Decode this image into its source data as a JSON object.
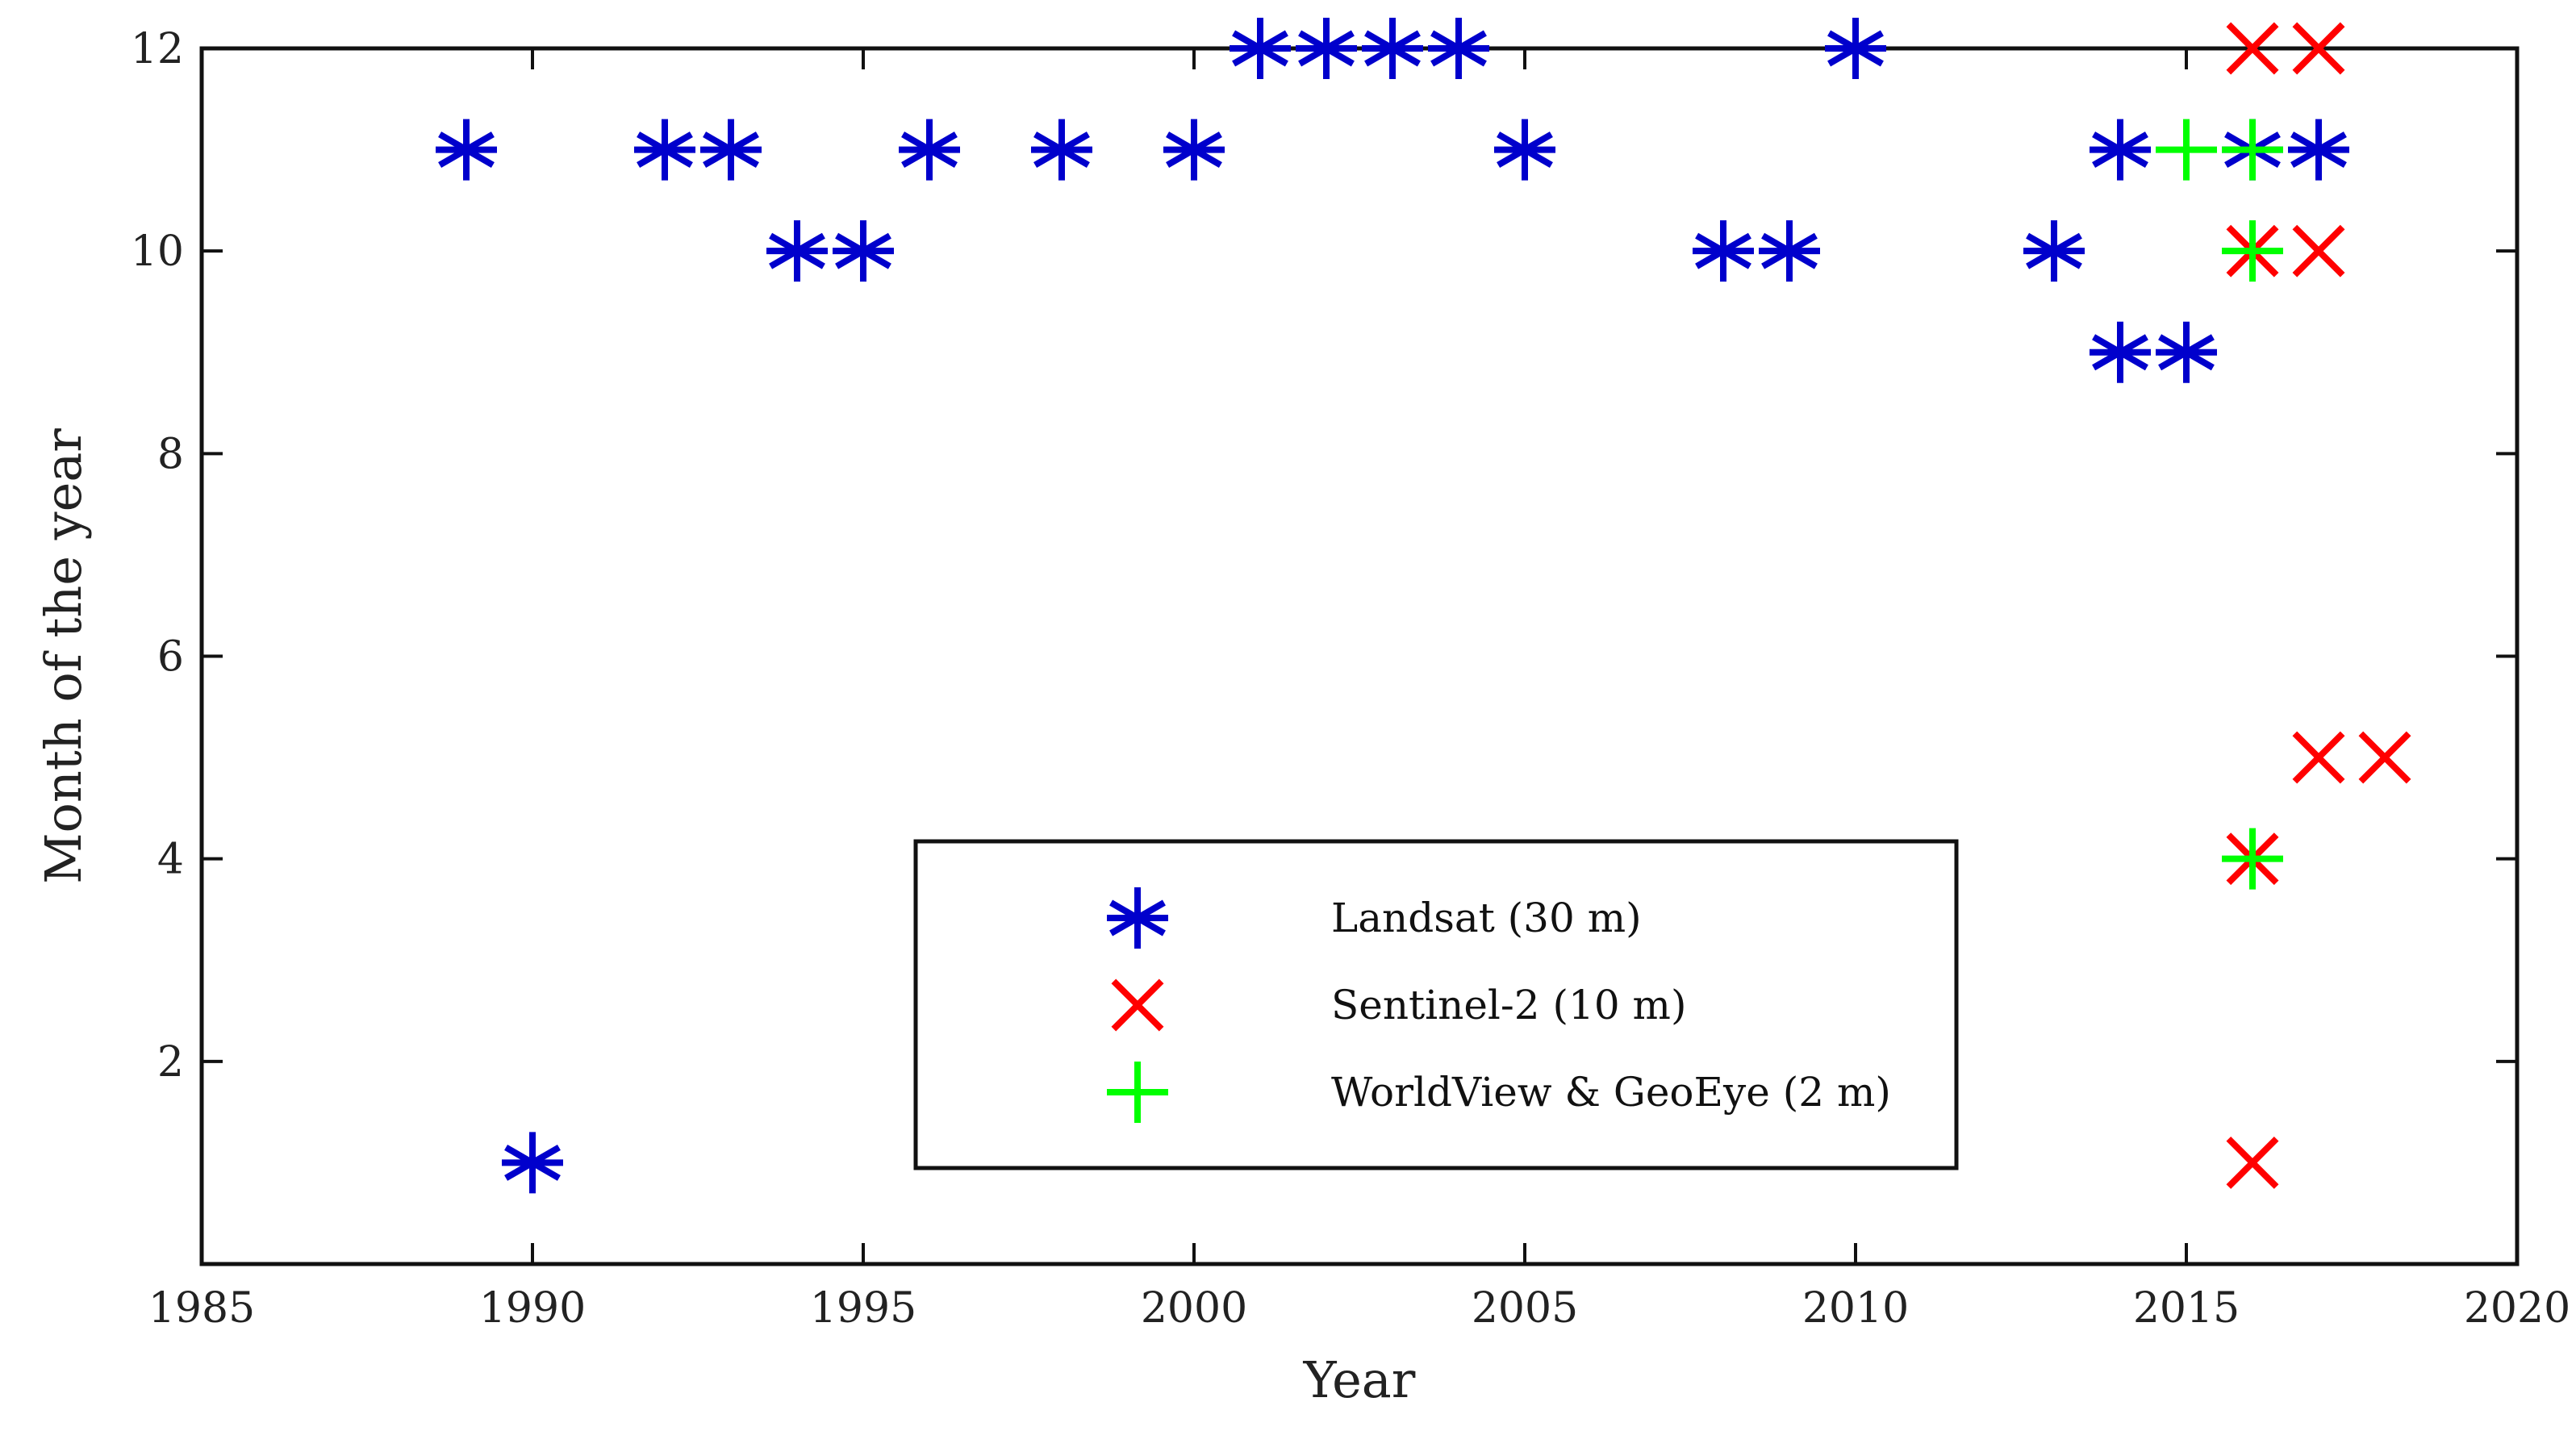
{
  "chart_data": {
    "type": "scatter",
    "title": "",
    "xlabel": "Year",
    "ylabel": "Month of the year",
    "xlim": [
      1985,
      2020
    ],
    "ylim": [
      0,
      12
    ],
    "xticks": [
      1985,
      1990,
      1995,
      2000,
      2005,
      2010,
      2015,
      2020
    ],
    "yticks": [
      2,
      4,
      6,
      8,
      10,
      12
    ],
    "xtick_labels": [
      "1985",
      "1990",
      "1995",
      "2000",
      "2005",
      "2010",
      "2015",
      "2020"
    ],
    "ytick_labels": [
      "2",
      "4",
      "6",
      "8",
      "10",
      "12"
    ],
    "grid": false,
    "legend_position": "bottom-center",
    "series": [
      {
        "name": "Landsat (30 m)",
        "marker": "asterisk",
        "color": "#0000CC",
        "points": [
          [
            1989,
            11
          ],
          [
            1990,
            1
          ],
          [
            1992,
            11
          ],
          [
            1993,
            11
          ],
          [
            1994,
            10
          ],
          [
            1995,
            10
          ],
          [
            1996,
            11
          ],
          [
            1998,
            11
          ],
          [
            2000,
            11
          ],
          [
            2001,
            12
          ],
          [
            2002,
            12
          ],
          [
            2003,
            12
          ],
          [
            2004,
            12
          ],
          [
            2005,
            11
          ],
          [
            2008,
            10
          ],
          [
            2009,
            10
          ],
          [
            2010,
            12
          ],
          [
            2013,
            10
          ],
          [
            2014,
            11
          ],
          [
            2014,
            9
          ],
          [
            2015,
            9
          ],
          [
            2016,
            11
          ],
          [
            2017,
            11
          ]
        ]
      },
      {
        "name": "Sentinel-2 (10 m)",
        "marker": "x",
        "color": "#FF0000",
        "points": [
          [
            2016,
            12
          ],
          [
            2017,
            12
          ],
          [
            2016,
            10
          ],
          [
            2017,
            10
          ],
          [
            2017,
            5
          ],
          [
            2018,
            5
          ],
          [
            2016,
            4
          ],
          [
            2016,
            1
          ]
        ]
      },
      {
        "name": "WorldView & GeoEye (2 m)",
        "marker": "plus",
        "color": "#00FF00",
        "points": [
          [
            2015,
            11
          ],
          [
            2016,
            11
          ],
          [
            2016,
            10
          ],
          [
            2016,
            4
          ]
        ]
      }
    ]
  }
}
